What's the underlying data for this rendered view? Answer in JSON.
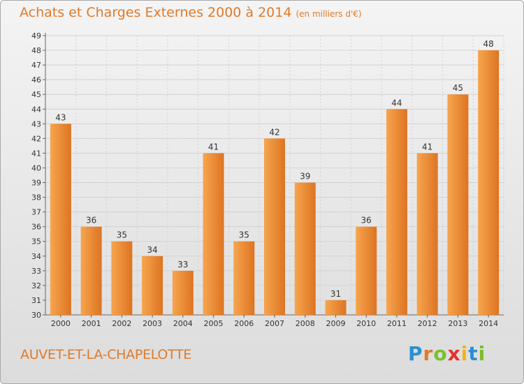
{
  "header": {
    "title": "Achats et Charges Externes 2000 à 2014",
    "unit_note": "(en milliers d'€)"
  },
  "footer": {
    "commune": "AUVET-ET-LA-CHAPELOTTE",
    "logo_letters": [
      "P",
      "r",
      "o",
      "x",
      "i",
      "t",
      "i"
    ],
    "logo_colors": [
      "#2b8fd1",
      "#e07a2a",
      "#7bbf2a",
      "#e5312f",
      "#f2b21c",
      "#2b8fd1",
      "#7bbf2a"
    ]
  },
  "colors": {
    "bar_light": "#f7a54f",
    "bar_dark": "#dd7421",
    "grid": "#d2d2d2",
    "title": "#e07a2a"
  },
  "chart_data": {
    "type": "bar",
    "title": "Achats et Charges Externes 2000 à 2014",
    "xlabel": "",
    "ylabel": "",
    "categories": [
      "2000",
      "2001",
      "2002",
      "2003",
      "2004",
      "2005",
      "2006",
      "2007",
      "2008",
      "2009",
      "2010",
      "2011",
      "2012",
      "2013",
      "2014"
    ],
    "values": [
      43,
      36,
      35,
      34,
      33,
      41,
      35,
      42,
      39,
      31,
      36,
      44,
      41,
      45,
      48
    ],
    "ylim": [
      30,
      49
    ],
    "yticks": [
      30,
      31,
      32,
      33,
      34,
      35,
      36,
      37,
      38,
      39,
      40,
      41,
      42,
      43,
      44,
      45,
      46,
      47,
      48,
      49
    ],
    "grid": true
  }
}
